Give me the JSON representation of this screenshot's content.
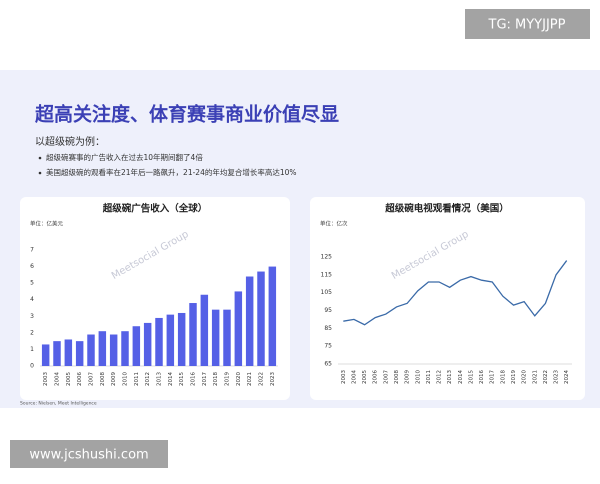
{
  "header": {
    "title": "超高关注度、体育赛事商业价值尽显",
    "intro": "以超级碗为例：",
    "bullets": [
      "超级碗赛事的广告收入在过去10年期间翻了4倍",
      "美国超级碗的观看率在21年后一路飙升，21-24的年均复合增长率高达10%"
    ]
  },
  "watermark": "Meetsocial Group",
  "source": "Source: Nielsen, Meet Intelligence",
  "tags": {
    "top": "TG: MYYJJPP",
    "bottom": "www.jcshushi.com"
  },
  "chart_data": [
    {
      "type": "bar",
      "title": "超级碗广告收入（全球）",
      "unit": "单位：亿美元",
      "color": "#5560e6",
      "categories": [
        "2003",
        "2004",
        "2005",
        "2006",
        "2007",
        "2008",
        "2009",
        "2010",
        "2011",
        "2012",
        "2013",
        "2014",
        "2015",
        "2016",
        "2017",
        "2018",
        "2019",
        "2020",
        "2021",
        "2022",
        "2023"
      ],
      "values": [
        1.3,
        1.5,
        1.6,
        1.5,
        1.9,
        2.1,
        1.9,
        2.1,
        2.4,
        2.6,
        2.9,
        3.1,
        3.2,
        3.8,
        4.3,
        3.4,
        3.4,
        4.5,
        5.4,
        5.7,
        6.0
      ],
      "ylim": [
        0,
        7
      ],
      "yticks": [
        0,
        1,
        2,
        3,
        4,
        5,
        6,
        7
      ]
    },
    {
      "type": "line",
      "title": "超级碗电视观看情况（美国）",
      "unit": "单位：亿次",
      "color": "#3a6aa8",
      "categories": [
        "2003",
        "2004",
        "2005",
        "2006",
        "2007",
        "2008",
        "2009",
        "2010",
        "2011",
        "2012",
        "2013",
        "2014",
        "2015",
        "2016",
        "2017",
        "2018",
        "2019",
        "2020",
        "2021",
        "2022",
        "2023",
        "2024"
      ],
      "values": [
        89,
        90,
        87,
        91,
        93,
        97,
        99,
        106,
        111,
        111,
        108,
        112,
        114,
        112,
        111,
        103,
        98,
        100,
        92,
        99,
        115,
        123
      ],
      "ylim": [
        65,
        125
      ],
      "yticks": [
        65,
        75,
        85,
        95,
        105,
        115,
        125
      ]
    }
  ]
}
